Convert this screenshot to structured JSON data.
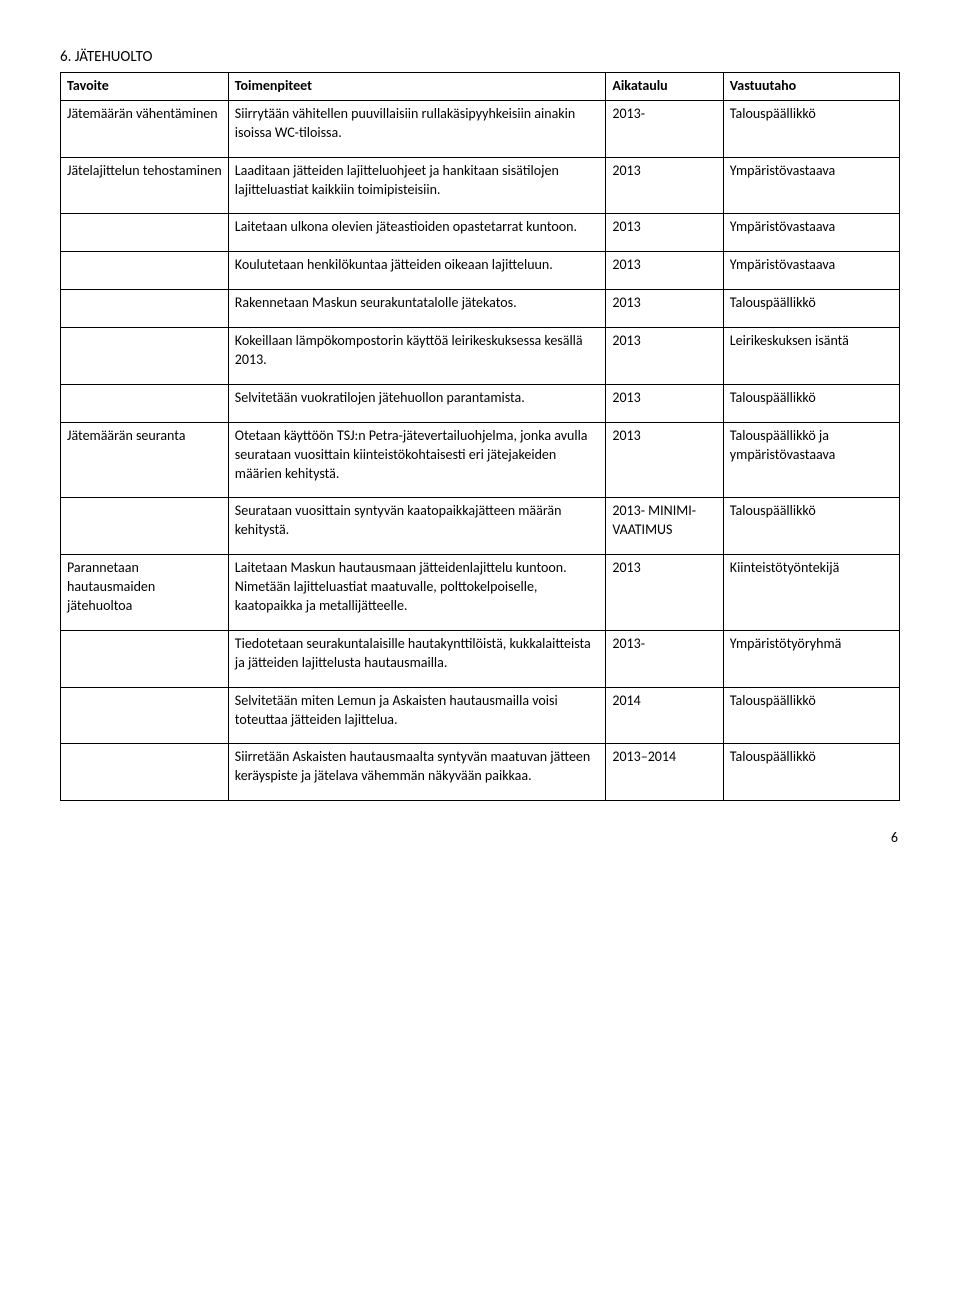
{
  "heading": "6. JÄTEHUOLTO",
  "columns": [
    "Tavoite",
    "Toimenpiteet",
    "Aikataulu",
    "Vastuutaho"
  ],
  "rows": [
    [
      "Jätemäärän vähentäminen",
      "Siirrytään vähitellen puuvillaisiin rullakäsipyyhkeisiin ainakin isoissa WC-tiloissa.",
      "2013-",
      "Talouspäällikkö"
    ],
    [
      "Jätelajittelun tehostaminen",
      "Laaditaan jätteiden lajitteluohjeet ja hankitaan sisätilojen lajitteluastiat kaikkiin toimipisteisiin.",
      "2013",
      "Ympäristövastaava"
    ],
    [
      "",
      "Laitetaan ulkona olevien jäteastioiden opastetarrat kuntoon.",
      "2013",
      "Ympäristövastaava"
    ],
    [
      "",
      "Koulutetaan henkilökuntaa jätteiden oikeaan lajitteluun.",
      "2013",
      "Ympäristövastaava"
    ],
    [
      "",
      "Rakennetaan Maskun seurakuntatalolle jätekatos.",
      "2013",
      "Talouspäällikkö"
    ],
    [
      "",
      "Kokeillaan lämpökompostorin käyttöä leirikeskuksessa kesällä 2013.",
      "2013",
      "Leirikeskuksen isäntä"
    ],
    [
      "",
      "Selvitetään vuokratilojen jätehuollon parantamista.",
      "2013",
      "Talouspäällikkö"
    ],
    [
      "Jätemäärän seuranta",
      "Otetaan käyttöön TSJ:n Petra-jätevertailuohjelma, jonka avulla seurataan vuosittain kiinteistökohtaisesti eri jätejakeiden määrien kehitystä.",
      "2013",
      "Talouspäällikkö ja ympäristövastaava"
    ],
    [
      "",
      "Seurataan vuosittain syntyvän kaatopaikkajätteen määrän kehitystä.",
      "2013- MINIMI-VAATIMUS",
      "Talouspäällikkö"
    ],
    [
      "Parannetaan hautausmaiden jätehuoltoa",
      "Laitetaan Maskun hautausmaan jätteidenlajittelu kuntoon. Nimetään lajitteluastiat maatuvalle, polttokelpoiselle, kaatopaikka ja metallijätteelle.",
      "2013",
      "Kiinteistötyöntekijä"
    ],
    [
      "",
      "Tiedotetaan seurakuntalaisille hautakynttilöistä, kukkalaitteista ja jätteiden lajittelusta hautausmailla.",
      "2013-",
      "Ympäristötyöryhmä"
    ],
    [
      "",
      "Selvitetään miten Lemun ja Askaisten hautausmailla voisi toteuttaa jätteiden lajittelua.",
      "2014",
      "Talouspäällikkö"
    ],
    [
      "",
      "Siirretään Askaisten hautausmaalta syntyvän maatuvan jätteen keräyspiste ja jätelava vähemmän näkyvään paikkaa.",
      "2013–2014",
      "Talouspäällikkö"
    ]
  ],
  "pageNumber": "6"
}
